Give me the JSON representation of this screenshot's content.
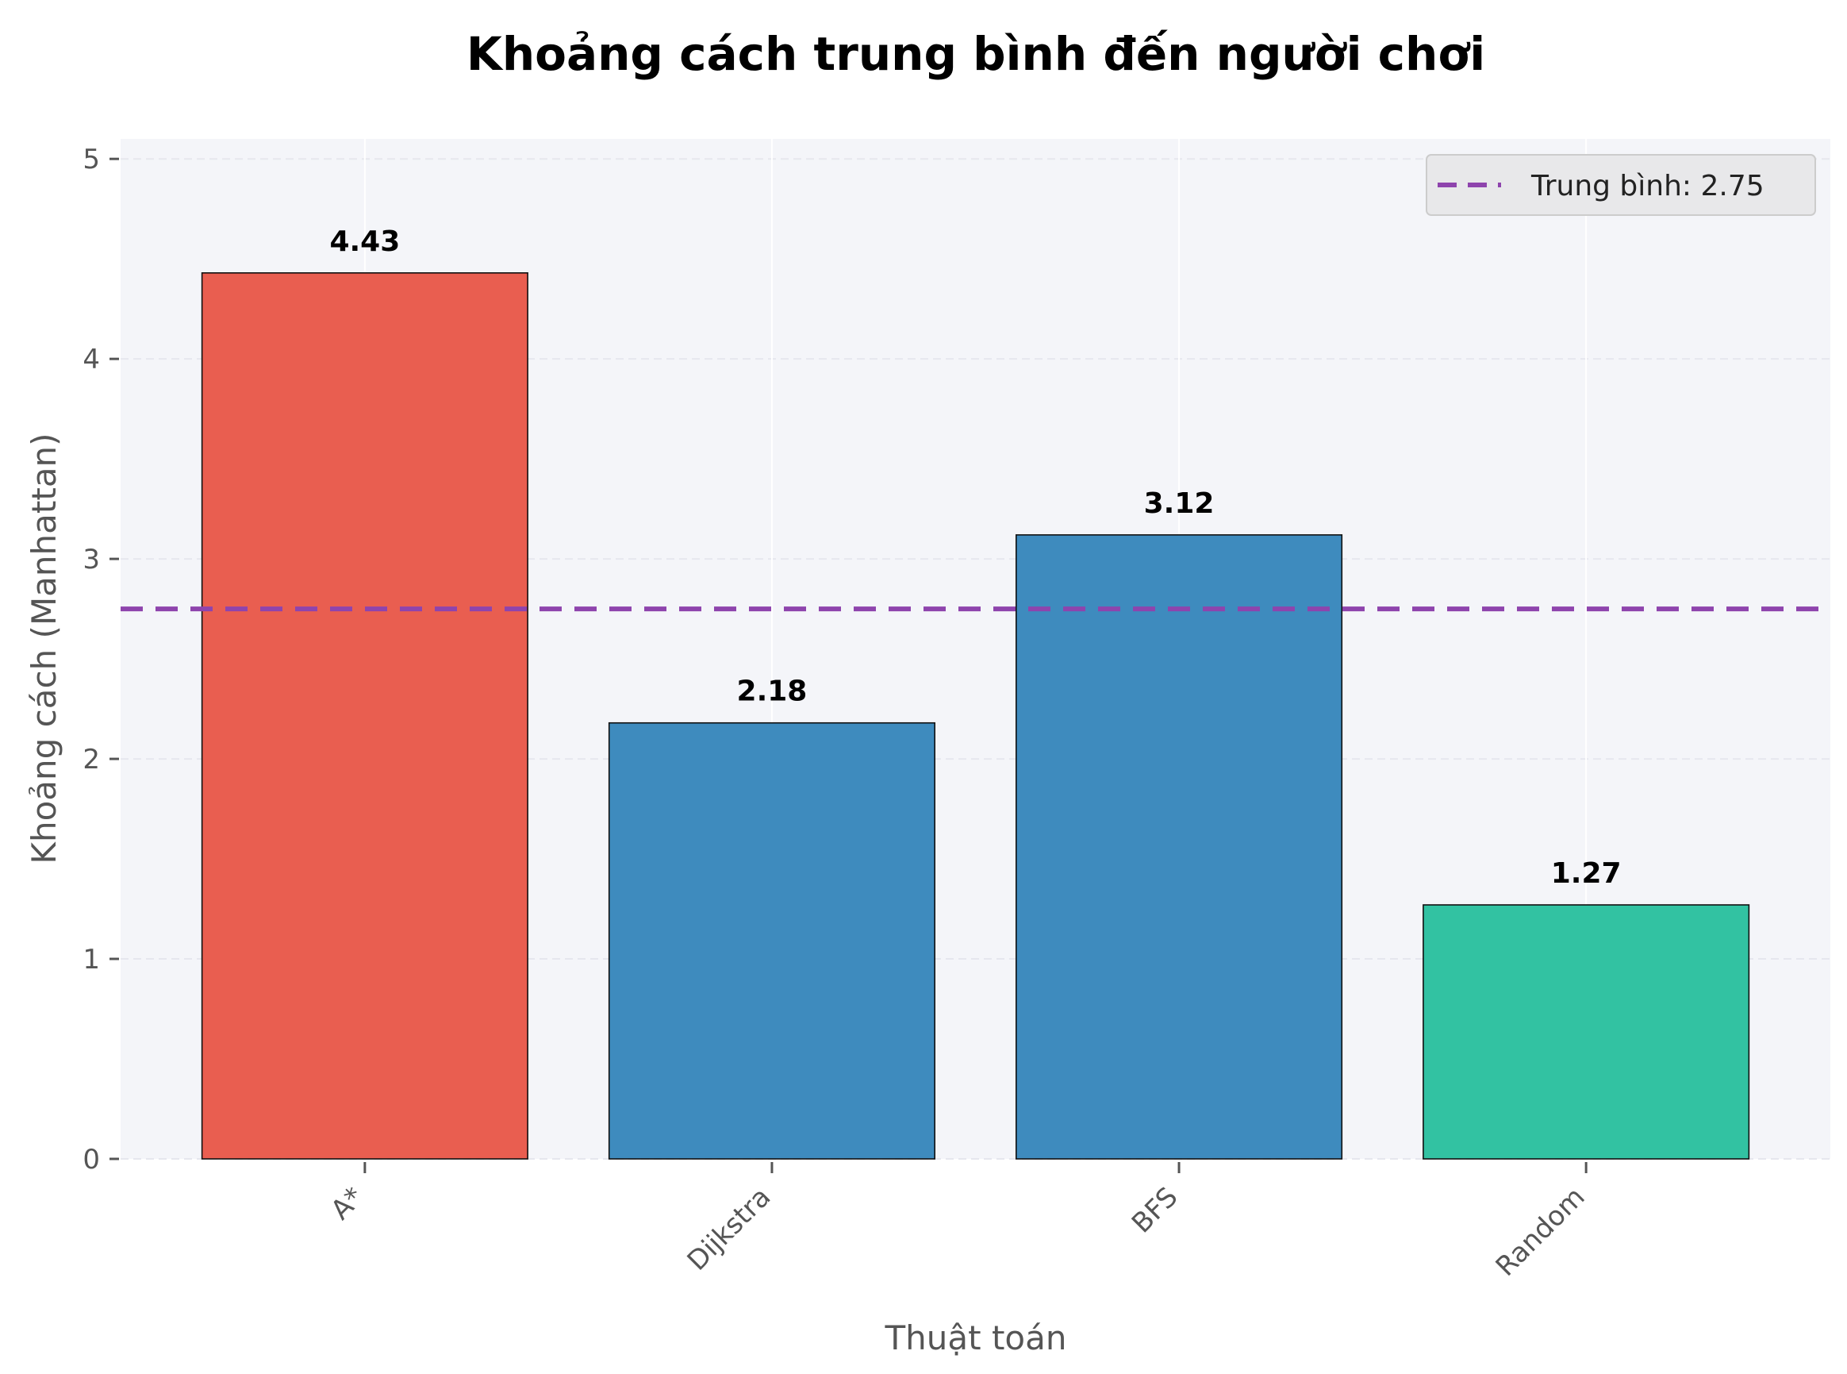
{
  "chart_data": {
    "type": "bar",
    "title": "Khoảng cách trung bình đến người chơi",
    "xlabel": "Thuật toán",
    "ylabel": "Khoảng cách (Manhattan)",
    "categories": [
      "A*",
      "Dijkstra",
      "BFS",
      "Random"
    ],
    "values": [
      4.43,
      2.18,
      3.12,
      1.27
    ],
    "value_labels": [
      "4.43",
      "2.18",
      "3.12",
      "1.27"
    ],
    "bar_colors": [
      "#e95e50",
      "#3e8bbe",
      "#3e8bbe",
      "#32c2a2"
    ],
    "ylim": [
      0,
      5.1
    ],
    "yticks": [
      0,
      1,
      2,
      3,
      4,
      5
    ],
    "ytick_labels": [
      "0",
      "1",
      "2",
      "3",
      "4",
      "5"
    ],
    "grid": true,
    "reference_line": {
      "value": 2.75,
      "label": "Trung bình: 2.75",
      "color": "#8e44ad",
      "style": "dashed"
    },
    "legend": {
      "placement": "top-right",
      "entries": [
        "Trung bình: 2.75"
      ]
    },
    "background_color": "#f4f5f9"
  }
}
